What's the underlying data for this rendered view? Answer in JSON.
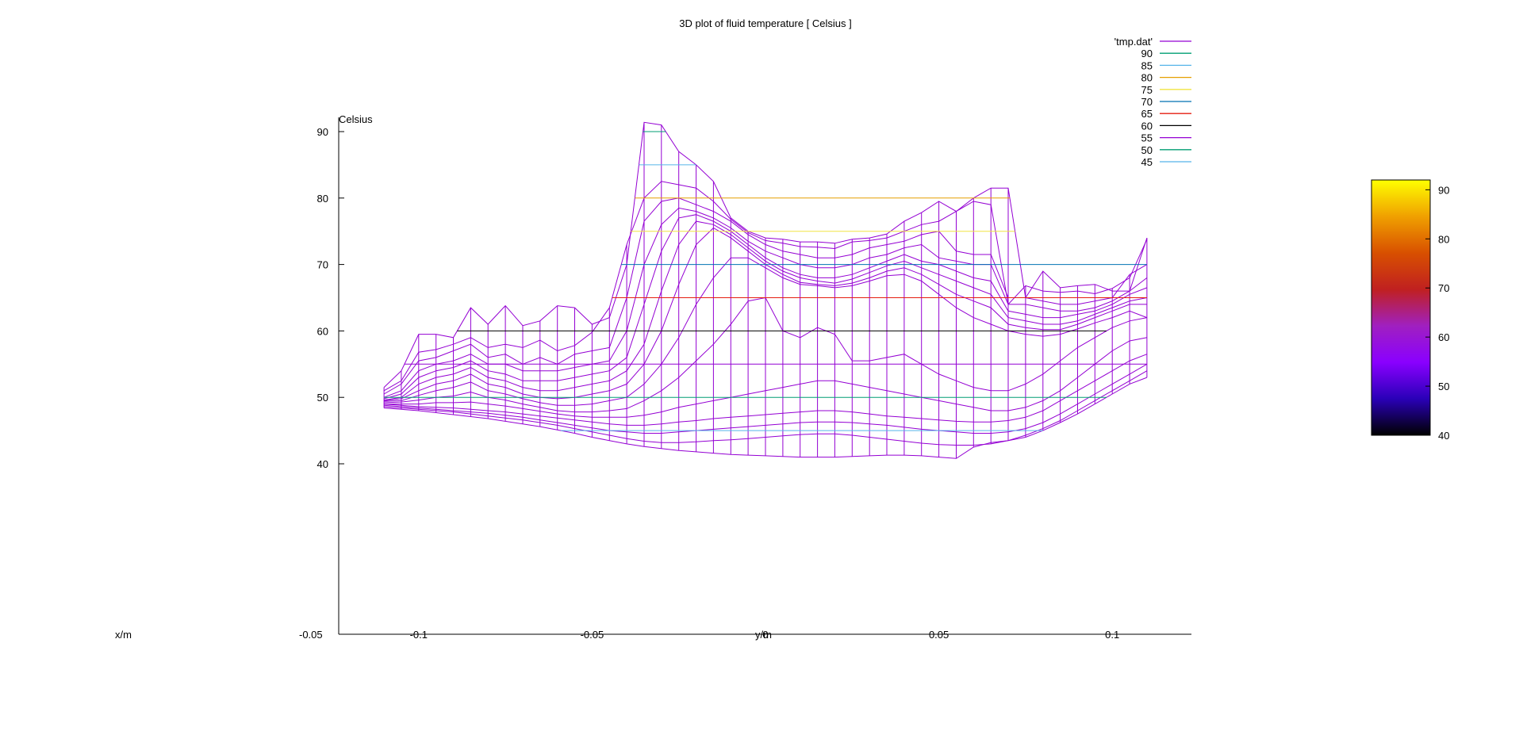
{
  "chart_data": {
    "type": "surface-wireframe-3d",
    "title": "3D plot of fluid temperature [ Celsius ]",
    "zlabel": "Celsius",
    "xlabel": "x/m",
    "ylabel": "y/m",
    "z_ticks": [
      40,
      50,
      60,
      70,
      80,
      90
    ],
    "zlim": [
      40,
      92
    ],
    "y_ticks": [
      -0.1,
      -0.05,
      0,
      0.05,
      0.1
    ],
    "ylim": [
      -0.124,
      0.125
    ],
    "x_tick_overlap_text": "-0.05",
    "legend_placement": "top-right",
    "legend": [
      {
        "label": "'tmp.dat'",
        "color": "#9400d3"
      },
      {
        "label": "90",
        "color": "#009e73"
      },
      {
        "label": "85",
        "color": "#56b4e9"
      },
      {
        "label": "80",
        "color": "#e69f00"
      },
      {
        "label": "75",
        "color": "#f0e442"
      },
      {
        "label": "70",
        "color": "#0072b2"
      },
      {
        "label": "65",
        "color": "#e51e10"
      },
      {
        "label": "60",
        "color": "#000000"
      },
      {
        "label": "55",
        "color": "#9400d3"
      },
      {
        "label": "50",
        "color": "#009e73"
      },
      {
        "label": "45",
        "color": "#56b4e9"
      }
    ],
    "colorbar": {
      "ticks": [
        40,
        50,
        60,
        70,
        80,
        90
      ],
      "range": [
        40,
        92
      ],
      "palette": [
        "#000000",
        "#2a00b8",
        "#8a00ff",
        "#a020c0",
        "#c02020",
        "#d85000",
        "#f0a000",
        "#ffff00"
      ]
    },
    "y_grid": [
      -0.11,
      -0.105,
      -0.1,
      -0.095,
      -0.09,
      -0.085,
      -0.08,
      -0.075,
      -0.07,
      -0.065,
      -0.06,
      -0.055,
      -0.05,
      -0.045,
      -0.04,
      -0.035,
      -0.03,
      -0.025,
      -0.02,
      -0.015,
      -0.01,
      -0.005,
      0,
      0.005,
      0.01,
      0.015,
      0.02,
      0.025,
      0.03,
      0.035,
      0.04,
      0.045,
      0.05,
      0.055,
      0.06,
      0.065,
      0.07,
      0.075,
      0.08,
      0.085,
      0.09,
      0.095,
      0.1,
      0.105,
      0.11
    ],
    "series": [
      {
        "values": [
          51.5,
          54.0,
          59.5,
          59.5,
          59.0,
          63.5,
          61.0,
          63.8,
          60.8,
          61.5,
          63.8,
          63.5,
          61.0,
          62.0,
          70.0,
          91.4,
          91.0,
          87.0,
          85.0,
          82.5,
          77.0,
          75.0,
          74.0,
          73.8,
          73.4,
          73.4,
          73.2,
          73.8,
          74.0,
          74.6,
          76.5,
          77.8,
          79.5,
          78.0,
          80.0,
          81.5,
          81.5,
          65.0,
          69.0,
          66.5,
          66.8,
          67.0,
          66.0,
          66.0,
          74.0
        ]
      },
      {
        "values": [
          51.0,
          52.5,
          56.8,
          57.2,
          58.0,
          59.0,
          57.5,
          58.0,
          57.5,
          58.6,
          57.0,
          57.8,
          59.8,
          63.5,
          73.0,
          80.0,
          82.5,
          82.0,
          81.5,
          79.5,
          76.8,
          74.8,
          73.6,
          73.2,
          72.7,
          72.6,
          72.4,
          73.4,
          73.6,
          74.0,
          75.0,
          76.0,
          76.5,
          78.0,
          79.5,
          79.0,
          64.0,
          66.8,
          66.0,
          65.8,
          66.0,
          65.6,
          66.4,
          68.0,
          73.8
        ]
      },
      {
        "values": [
          50.5,
          52.0,
          55.5,
          56.0,
          57.0,
          58.0,
          56.0,
          56.5,
          55.0,
          56.0,
          55.0,
          56.5,
          57.0,
          57.5,
          65.0,
          76.5,
          79.5,
          80.0,
          79.0,
          78.0,
          76.5,
          74.5,
          73.0,
          72.0,
          71.5,
          71.0,
          71.0,
          71.5,
          72.5,
          73.0,
          73.5,
          74.5,
          75.0,
          72.0,
          71.5,
          71.5,
          65.0,
          65.0,
          64.5,
          64.0,
          64.0,
          64.5,
          65.0,
          68.5,
          70.0
        ]
      },
      {
        "values": [
          50.0,
          51.0,
          54.0,
          55.0,
          55.5,
          56.5,
          55.0,
          55.0,
          54.0,
          54.0,
          54.0,
          54.5,
          55.0,
          55.5,
          60.0,
          70.0,
          76.0,
          78.5,
          78.0,
          77.0,
          75.5,
          73.5,
          72.0,
          71.0,
          70.0,
          69.5,
          69.5,
          70.0,
          71.0,
          71.5,
          72.5,
          73.0,
          71.0,
          70.5,
          70.0,
          70.0,
          64.0,
          64.0,
          63.5,
          63.0,
          63.0,
          63.5,
          64.5,
          66.0,
          68.0
        ]
      },
      {
        "values": [
          49.8,
          50.5,
          53.0,
          54.0,
          54.5,
          55.5,
          54.0,
          53.5,
          52.5,
          52.5,
          52.5,
          53.0,
          53.5,
          54.0,
          56.0,
          64.0,
          72.0,
          77.0,
          77.5,
          76.5,
          75.0,
          73.0,
          71.0,
          69.5,
          68.5,
          68.0,
          68.0,
          68.5,
          69.5,
          70.5,
          71.5,
          70.5,
          70.0,
          69.0,
          68.0,
          67.5,
          63.0,
          62.5,
          62.0,
          62.0,
          62.5,
          63.0,
          64.0,
          65.5,
          66.5
        ]
      },
      {
        "values": [
          49.6,
          50.0,
          52.0,
          53.0,
          53.5,
          54.5,
          53.0,
          52.5,
          51.5,
          51.0,
          51.0,
          51.5,
          52.0,
          52.5,
          54.0,
          58.0,
          66.0,
          73.0,
          76.5,
          76.0,
          74.5,
          72.5,
          70.5,
          69.0,
          68.0,
          67.5,
          67.2,
          67.8,
          68.8,
          69.8,
          70.5,
          69.5,
          68.5,
          67.5,
          66.5,
          65.5,
          62.0,
          61.5,
          61.0,
          61.0,
          61.5,
          62.5,
          63.5,
          64.5,
          65.0
        ]
      },
      {
        "values": [
          49.5,
          49.8,
          51.0,
          52.0,
          52.5,
          53.5,
          52.0,
          51.5,
          50.5,
          50.0,
          49.8,
          50.0,
          50.5,
          51.0,
          52.0,
          55.0,
          60.0,
          67.0,
          73.0,
          75.5,
          74.0,
          72.0,
          70.0,
          68.5,
          67.3,
          67.0,
          66.8,
          67.2,
          68.0,
          69.0,
          69.5,
          68.5,
          67.0,
          65.5,
          64.5,
          63.5,
          61.0,
          60.5,
          60.2,
          60.2,
          61.0,
          62.0,
          63.0,
          64.0,
          64.0
        ]
      },
      {
        "values": [
          49.4,
          49.5,
          50.3,
          51.0,
          51.5,
          52.3,
          51.0,
          50.5,
          49.8,
          49.2,
          48.8,
          48.8,
          49.0,
          49.5,
          50.0,
          52.0,
          55.0,
          59.0,
          64.0,
          68.0,
          71.0,
          71.0,
          69.5,
          68.0,
          67.0,
          66.8,
          66.5,
          66.8,
          67.5,
          68.3,
          68.5,
          67.5,
          65.5,
          63.5,
          62.0,
          61.0,
          60.0,
          59.5,
          59.2,
          59.5,
          60.3,
          61.2,
          62.0,
          63.0,
          62.0
        ]
      },
      {
        "values": [
          49.2,
          49.3,
          49.6,
          50.0,
          50.2,
          50.8,
          50.0,
          49.6,
          49.0,
          48.5,
          48.0,
          47.8,
          47.8,
          48.0,
          48.3,
          49.5,
          51.0,
          53.0,
          55.5,
          58.0,
          61.0,
          64.5,
          65.0,
          60.0,
          59.0,
          60.5,
          59.5,
          55.5,
          55.5,
          56.0,
          56.5,
          55.0,
          53.5,
          52.5,
          51.5,
          51.0,
          51.0,
          52.0,
          53.5,
          55.5,
          57.5,
          59.0,
          60.5,
          61.5,
          62.0
        ]
      },
      {
        "values": [
          49.0,
          49.0,
          49.0,
          49.2,
          49.2,
          49.3,
          49.0,
          48.7,
          48.3,
          47.9,
          47.5,
          47.2,
          47.0,
          47.0,
          47.0,
          47.3,
          47.8,
          48.5,
          49.0,
          49.5,
          50.0,
          50.5,
          51.0,
          51.5,
          52.0,
          52.5,
          52.5,
          52.0,
          51.5,
          51.0,
          50.5,
          50.0,
          49.5,
          49.0,
          48.5,
          48.0,
          48.0,
          48.5,
          49.5,
          51.0,
          53.0,
          55.0,
          57.0,
          58.5,
          59.0
        ]
      },
      {
        "values": [
          49.0,
          48.8,
          48.6,
          48.5,
          48.4,
          48.2,
          48.0,
          47.8,
          47.5,
          47.2,
          46.9,
          46.6,
          46.3,
          46.0,
          45.8,
          45.8,
          46.0,
          46.3,
          46.5,
          46.8,
          47.0,
          47.2,
          47.4,
          47.6,
          47.8,
          48.0,
          48.0,
          47.8,
          47.5,
          47.2,
          47.0,
          46.8,
          46.6,
          46.4,
          46.3,
          46.3,
          46.5,
          47.0,
          48.0,
          49.5,
          51.0,
          52.5,
          54.0,
          55.5,
          56.5
        ]
      },
      {
        "values": [
          48.8,
          48.6,
          48.4,
          48.2,
          48.0,
          47.8,
          47.6,
          47.3,
          47.0,
          46.6,
          46.2,
          45.8,
          45.4,
          45.0,
          44.8,
          44.6,
          44.6,
          44.8,
          45.0,
          45.2,
          45.4,
          45.6,
          45.8,
          46.0,
          46.2,
          46.3,
          46.3,
          46.2,
          46.0,
          45.8,
          45.5,
          45.2,
          45.0,
          44.8,
          44.6,
          44.6,
          44.8,
          45.3,
          46.2,
          47.5,
          49.0,
          50.5,
          52.0,
          53.5,
          55.0
        ]
      },
      {
        "values": [
          48.6,
          48.4,
          48.2,
          48.0,
          47.8,
          47.5,
          47.2,
          46.9,
          46.6,
          46.2,
          45.8,
          45.3,
          44.8,
          44.3,
          43.8,
          43.4,
          43.2,
          43.2,
          43.3,
          43.5,
          43.6,
          43.8,
          44.0,
          44.2,
          44.4,
          44.5,
          44.5,
          44.3,
          44.0,
          43.7,
          43.4,
          43.1,
          42.9,
          42.8,
          42.8,
          43.0,
          43.5,
          44.3,
          45.3,
          46.5,
          48.0,
          49.5,
          51.0,
          52.5,
          54.0
        ]
      },
      {
        "values": [
          48.4,
          48.2,
          48.0,
          47.7,
          47.4,
          47.1,
          46.8,
          46.4,
          46.0,
          45.6,
          45.1,
          44.6,
          44.0,
          43.5,
          43.0,
          42.6,
          42.3,
          42.0,
          41.8,
          41.6,
          41.4,
          41.3,
          41.2,
          41.1,
          41.0,
          41.0,
          41.0,
          41.1,
          41.2,
          41.3,
          41.3,
          41.2,
          41.0,
          40.8,
          42.5,
          43.2,
          43.5,
          44.0,
          45.0,
          46.2,
          47.5,
          49.0,
          50.5,
          52.0,
          53.0
        ]
      }
    ]
  }
}
